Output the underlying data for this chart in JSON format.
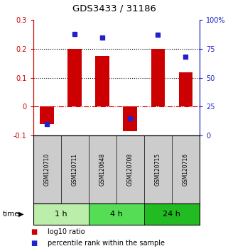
{
  "title": "GDS3433 / 31186",
  "samples": [
    "GSM120710",
    "GSM120711",
    "GSM120648",
    "GSM120708",
    "GSM120715",
    "GSM120716"
  ],
  "log10_ratio": [
    -0.06,
    0.2,
    0.175,
    -0.085,
    0.2,
    0.12
  ],
  "percentile_rank": [
    10.0,
    88.0,
    85.0,
    15.0,
    87.0,
    68.0
  ],
  "left_ylim": [
    -0.1,
    0.3
  ],
  "right_ylim": [
    0,
    100
  ],
  "left_yticks": [
    -0.1,
    0.0,
    0.1,
    0.2,
    0.3
  ],
  "right_yticks": [
    0,
    25,
    50,
    75,
    100
  ],
  "left_yticklabels": [
    "-0.1",
    "0",
    "0.1",
    "0.2",
    "0.3"
  ],
  "right_yticklabels": [
    "0",
    "25",
    "50",
    "75",
    "100%"
  ],
  "dotted_lines": [
    0.1,
    0.2
  ],
  "zero_line": 0.0,
  "bar_color": "#cc0000",
  "dot_color": "#2222cc",
  "bar_width": 0.5,
  "group_labels": [
    "1 h",
    "4 h",
    "24 h"
  ],
  "group_sample_ranges": [
    [
      0,
      1
    ],
    [
      2,
      3
    ],
    [
      4,
      5
    ]
  ],
  "group_colors": [
    "#bbeeaa",
    "#55dd55",
    "#22bb22"
  ],
  "time_label": "time",
  "legend_labels": [
    "log10 ratio",
    "percentile rank within the sample"
  ],
  "legend_colors": [
    "#cc0000",
    "#2222cc"
  ],
  "axis_left_color": "#cc0000",
  "axis_right_color": "#2222cc",
  "bg_color": "#ffffff",
  "panel_bg": "#ffffff",
  "label_bg": "#cccccc"
}
